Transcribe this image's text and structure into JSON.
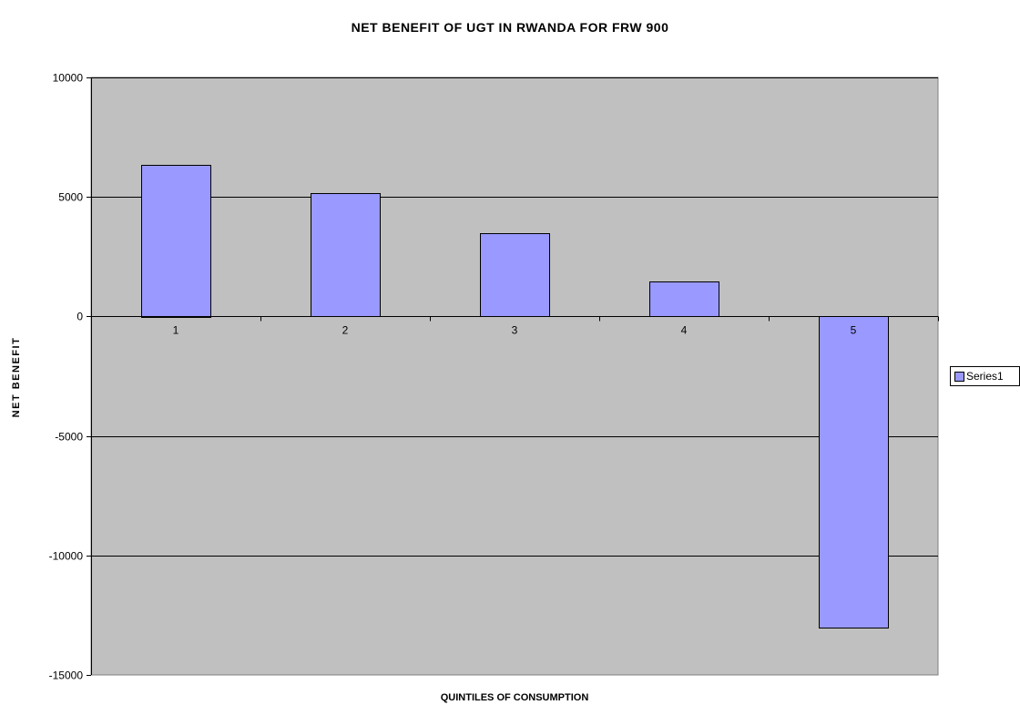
{
  "chart_data": {
    "type": "bar",
    "title": "NET BENEFIT OF UGT IN RWANDA FOR FRW 900",
    "xlabel": "QUINTILES OF CONSUMPTION",
    "ylabel": "NET BENEFIT",
    "categories": [
      "1",
      "2",
      "3",
      "4",
      "5"
    ],
    "series": [
      {
        "name": "Series1",
        "values": [
          6350,
          5150,
          3480,
          1460,
          -13050
        ],
        "color": "#9999ff"
      }
    ],
    "ylim": [
      -15000,
      10000
    ],
    "yticks": [
      10000,
      5000,
      0,
      -5000,
      -10000,
      -15000
    ],
    "ytick_labels": [
      "10000",
      "5000",
      "0",
      "-5000",
      "-10000",
      "-15000"
    ],
    "grid": true,
    "legend_position": "right",
    "plot_background": "#c0c0c0",
    "bar_edge_color": "#000000"
  }
}
